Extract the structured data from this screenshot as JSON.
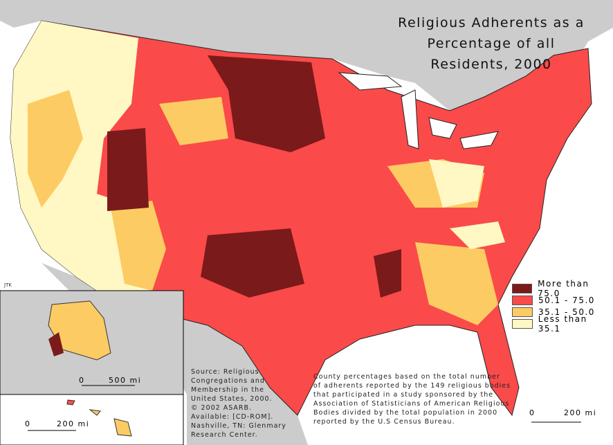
{
  "title": {
    "line1": "Religious Adherents as a",
    "line2": "Percentage of all Residents, 2000"
  },
  "legend": [
    {
      "label": "More than 75.0",
      "color": "#7b1a1a"
    },
    {
      "label": "50.1 - 75.0",
      "color": "#fa4a4a"
    },
    {
      "label": "35.1 - 50.0",
      "color": "#fdcb63"
    },
    {
      "label": "Less than 35.1",
      "color": "#fff8c4"
    }
  ],
  "source": [
    "Source:  Religious",
    "Congregations and",
    "Membership in the",
    "United States, 2000.",
    "© 2002 ASARB.",
    "Available: [CD-ROM].",
    "Nashville, TN: Glenmary",
    "Research Center."
  ],
  "note": [
    "County percentages based on the total number",
    "of adherents reported by the 149 religious bodies",
    "that participated in a study sponsored by the",
    "Association of Statisticians of American Religious",
    "Bodies divided by the total population in 2000",
    "reported by the U.S Census Bureau."
  ],
  "credit": "JTK",
  "scales": {
    "alaska": {
      "zero": "0",
      "value": "500 mi"
    },
    "hawaii": {
      "zero": "0",
      "value": "200 mi"
    },
    "main": {
      "zero": "0",
      "value": "200 mi"
    }
  },
  "colors": {
    "foreign_land": "#cccccc",
    "water": "#ffffff",
    "boundary": "#555555"
  }
}
